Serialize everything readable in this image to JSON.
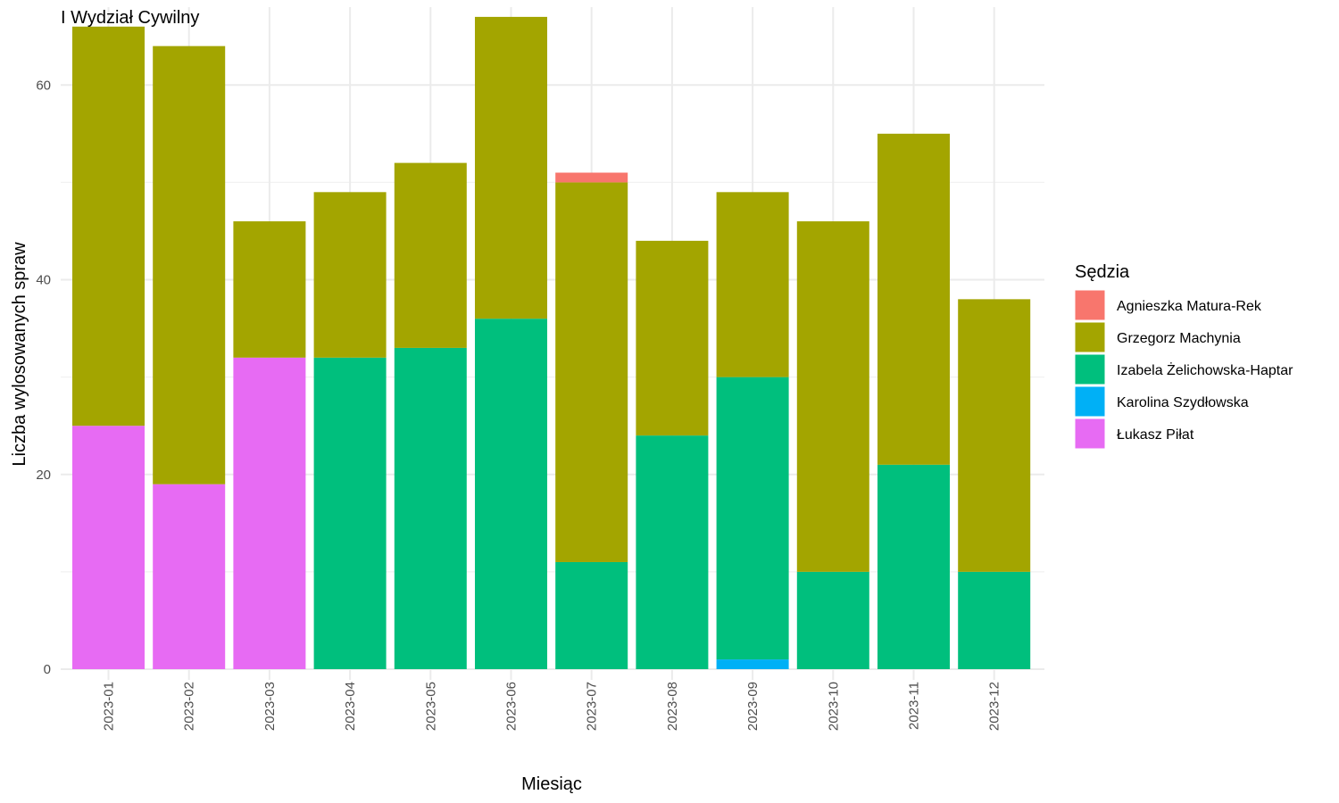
{
  "chart_data": {
    "type": "bar",
    "stacked": true,
    "title": "I Wydział Cywilny",
    "xlabel": "Miesiąc",
    "ylabel": "Liczba wylosowanych spraw",
    "ylim": [
      0,
      68
    ],
    "yticks": [
      0,
      20,
      40,
      60
    ],
    "grid": true,
    "legend": {
      "title": "Sędzia",
      "position": "right"
    },
    "categories": [
      "2023-01",
      "2023-02",
      "2023-03",
      "2023-04",
      "2023-05",
      "2023-06",
      "2023-07",
      "2023-08",
      "2023-09",
      "2023-10",
      "2023-11",
      "2023-12"
    ],
    "series": [
      {
        "name": "Agnieszka Matura-Rek",
        "color": "#F8766D",
        "values": [
          0,
          0,
          0,
          0,
          0,
          0,
          1,
          0,
          0,
          0,
          0,
          0
        ]
      },
      {
        "name": "Grzegorz Machynia",
        "color": "#A3A500",
        "values": [
          41,
          45,
          14,
          17,
          19,
          31,
          39,
          20,
          19,
          36,
          34,
          28
        ]
      },
      {
        "name": "Izabela Żelichowska-Haptar",
        "color": "#00BF7D",
        "values": [
          0,
          0,
          0,
          32,
          33,
          36,
          11,
          24,
          29,
          10,
          21,
          10
        ]
      },
      {
        "name": "Karolina Szydłowska",
        "color": "#00B0F6",
        "values": [
          0,
          0,
          0,
          0,
          0,
          0,
          0,
          0,
          1,
          0,
          0,
          0
        ]
      },
      {
        "name": "Łukasz Piłat",
        "color": "#E76BF3",
        "values": [
          25,
          19,
          32,
          0,
          0,
          0,
          0,
          0,
          0,
          0,
          0,
          0
        ]
      }
    ]
  }
}
